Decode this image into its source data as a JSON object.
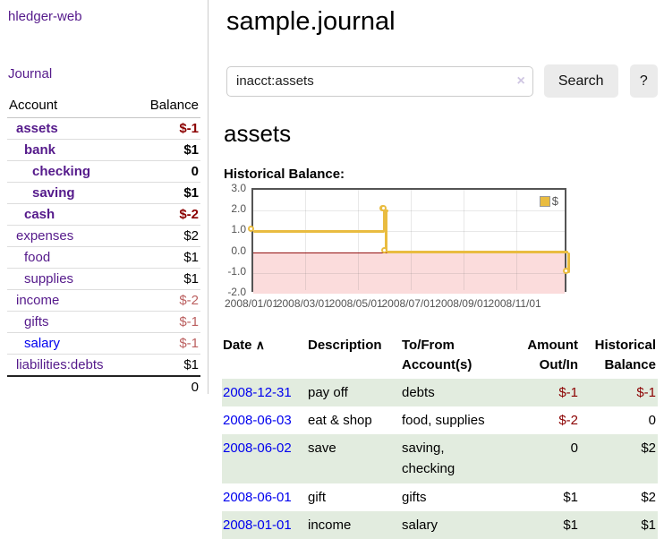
{
  "app": {
    "title": "hledger-web"
  },
  "nav": {
    "journal_label": "Journal"
  },
  "sidebar": {
    "headers": {
      "account": "Account",
      "balance": "Balance"
    },
    "accounts": [
      {
        "name": "assets",
        "level": 1,
        "bold": true,
        "link": "purple",
        "balance": "$-1",
        "balance_style": "neg-strong"
      },
      {
        "name": "bank",
        "level": 2,
        "bold": true,
        "link": "purple",
        "balance": "$1",
        "balance_style": "pos"
      },
      {
        "name": "checking",
        "level": 3,
        "bold": true,
        "link": "purple",
        "balance": "0",
        "balance_style": "pos"
      },
      {
        "name": "saving",
        "level": 3,
        "bold": true,
        "link": "purple",
        "balance": "$1",
        "balance_style": "pos"
      },
      {
        "name": "cash",
        "level": 2,
        "bold": true,
        "link": "purple",
        "balance": "$-2",
        "balance_style": "neg-strong"
      },
      {
        "name": "expenses",
        "level": 1,
        "bold": false,
        "link": "purple",
        "balance": "$2",
        "balance_style": "pos"
      },
      {
        "name": "food",
        "level": 2,
        "bold": false,
        "link": "purple",
        "balance": "$1",
        "balance_style": "pos"
      },
      {
        "name": "supplies",
        "level": 2,
        "bold": false,
        "link": "purple",
        "balance": "$1",
        "balance_style": "pos"
      },
      {
        "name": "income",
        "level": 1,
        "bold": false,
        "link": "purple",
        "balance": "$-2",
        "balance_style": "neg-soft"
      },
      {
        "name": "gifts",
        "level": 2,
        "bold": false,
        "link": "purple",
        "balance": "$-1",
        "balance_style": "neg-soft"
      },
      {
        "name": "salary",
        "level": 2,
        "bold": false,
        "link": "blue",
        "balance": "$-1",
        "balance_style": "neg-soft"
      },
      {
        "name": "liabilities:debts",
        "level": 1,
        "bold": false,
        "link": "purple",
        "balance": "$1",
        "balance_style": "pos"
      }
    ],
    "total": "0"
  },
  "header": {
    "title": "sample.journal"
  },
  "search": {
    "value": "inacct:assets",
    "clear_icon": "×",
    "button_label": "Search",
    "help_label": "?"
  },
  "account_page": {
    "heading": "assets",
    "chart_label": "Historical Balance:"
  },
  "chart_data": {
    "type": "line",
    "step": true,
    "title": "Historical Balance",
    "series": [
      {
        "name": "$",
        "color": "#e9bc40",
        "points": [
          [
            "2008/01/01",
            1
          ],
          [
            "2008/06/01",
            2
          ],
          [
            "2008/06/02",
            2
          ],
          [
            "2008/06/03",
            0
          ],
          [
            "2008/12/31",
            -1
          ]
        ]
      }
    ],
    "x_range": [
      "2008/01/01",
      "2008/12/31"
    ],
    "ylim": [
      -2,
      3
    ],
    "x_ticks": [
      "2008/01/01",
      "2008/03/01",
      "2008/05/01",
      "2008/07/01",
      "2008/09/01",
      "2008/11/01"
    ],
    "y_ticks": [
      "3.0",
      "2.0",
      "1.0",
      "0.0",
      "-1.0",
      "-2.0"
    ],
    "legend": {
      "label": "$",
      "position": "top-right"
    },
    "grid": true,
    "negative_region_color": "#fbdcdc",
    "zero_line_color": "#941111"
  },
  "register": {
    "headers": {
      "date": "Date",
      "sort_icon": "∧",
      "description": "Description",
      "account": "To/From Account(s)",
      "amount": "Amount Out/In",
      "balance": "Historical Balance"
    },
    "rows": [
      {
        "date": "2008-12-31",
        "description": "pay off",
        "accounts": [
          "debts"
        ],
        "amount": "$-1",
        "amount_neg": true,
        "balance": "$-1",
        "balance_neg": true,
        "shaded": true
      },
      {
        "date": "2008-06-03",
        "description": "eat & shop",
        "accounts": [
          "food, supplies"
        ],
        "amount": "$-2",
        "amount_neg": true,
        "balance": "0",
        "balance_neg": false,
        "shaded": false
      },
      {
        "date": "2008-06-02",
        "description": "save",
        "accounts": [
          "saving,",
          "checking"
        ],
        "amount": "0",
        "amount_neg": false,
        "balance": "$2",
        "balance_neg": false,
        "shaded": true
      },
      {
        "date": "2008-06-01",
        "description": "gift",
        "accounts": [
          "gifts"
        ],
        "amount": "$1",
        "amount_neg": false,
        "balance": "$2",
        "balance_neg": false,
        "shaded": false
      },
      {
        "date": "2008-01-01",
        "description": "income",
        "accounts": [
          "salary"
        ],
        "amount": "$1",
        "amount_neg": false,
        "balance": "$1",
        "balance_neg": false,
        "shaded": true
      }
    ]
  },
  "colors": {
    "link_purple": "#551a8b",
    "link_blue": "#0000ee",
    "negative_strong": "#8b0000",
    "negative_soft": "#bb5f5f",
    "row_shade_green": "#e2ecdf",
    "chart_line_gold": "#e9bc40",
    "chart_negative_fill": "#fbdcdc",
    "chart_zero_line": "#941111"
  }
}
